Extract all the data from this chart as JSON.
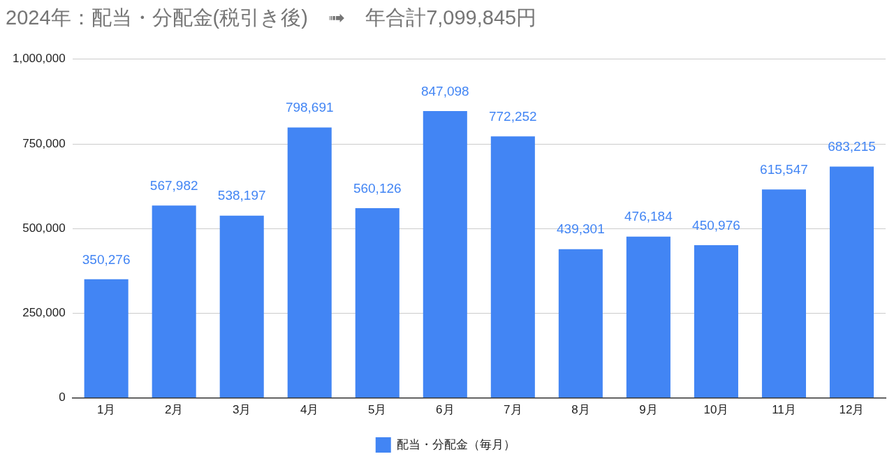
{
  "chart_data": {
    "type": "bar",
    "title": "2024年：配当・分配金(税引き後)　➟　年合計7,099,845円",
    "categories": [
      "1月",
      "2月",
      "3月",
      "4月",
      "5月",
      "6月",
      "7月",
      "8月",
      "9月",
      "10月",
      "11月",
      "12月"
    ],
    "series": [
      {
        "name": "配当・分配金（毎月）",
        "color": "#4285f4",
        "values": [
          350276,
          567982,
          538197,
          798691,
          560126,
          847098,
          772252,
          439301,
          476184,
          450976,
          615547,
          683215
        ],
        "value_labels": [
          "350,276",
          "567,982",
          "538,197",
          "798,691",
          "560,126",
          "847,098",
          "772,252",
          "439,301",
          "476,184",
          "450,976",
          "615,547",
          "683,215"
        ]
      }
    ],
    "ylim": [
      0,
      1000000
    ],
    "yticks": [
      0,
      {
        "value": 250000,
        "label": "250,000"
      },
      {
        "value": 500000,
        "label": "500,000"
      },
      {
        "value": 750000,
        "label": "750,000"
      },
      {
        "value": 1000000,
        "label": "1,000,000"
      }
    ],
    "grid": "y",
    "legend": "bottom"
  }
}
